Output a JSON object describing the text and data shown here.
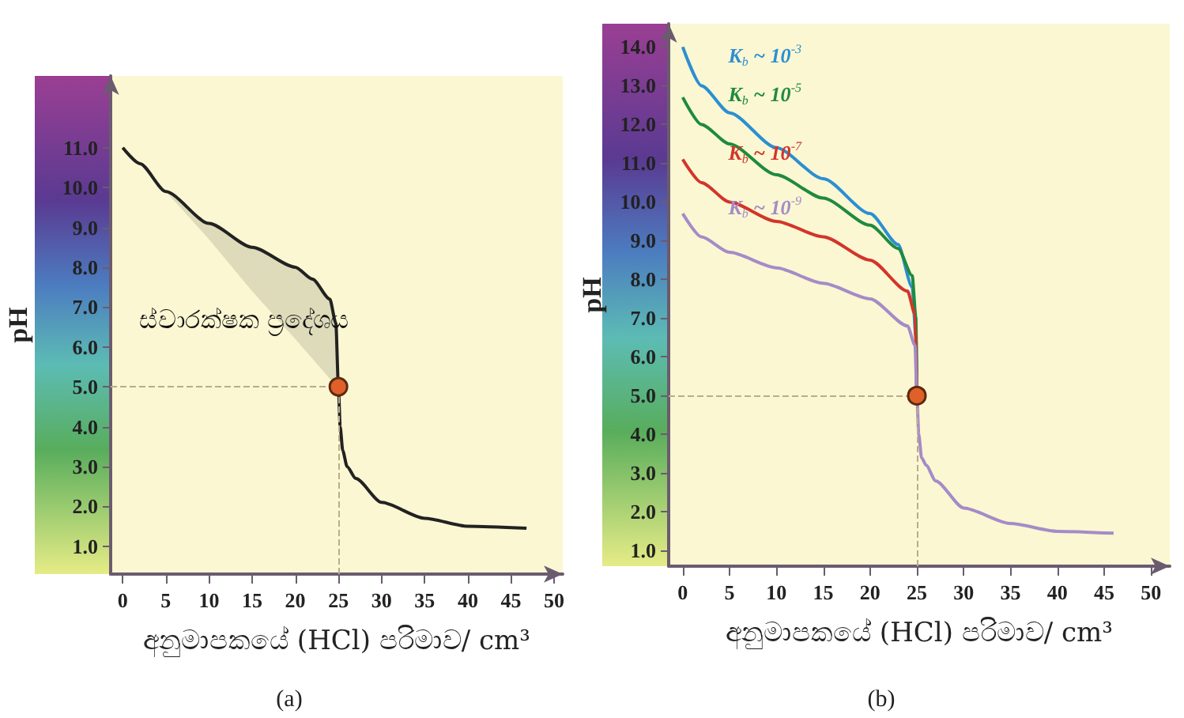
{
  "chart_data": [
    {
      "type": "line",
      "xlabel": "අනුමාපකයේ (HCl) පරිමාව/ cm³",
      "ylabel": "pH",
      "xlim": [
        -1.4,
        51
      ],
      "xticks": [
        0,
        5,
        10,
        15,
        20,
        25,
        30,
        35,
        40,
        45,
        50
      ],
      "ylim": [
        0.3,
        12.8
      ],
      "yticks": [
        {
          "value": 1,
          "label": "1.0"
        },
        {
          "value": 2,
          "label": "2.0"
        },
        {
          "value": 3,
          "label": "3.0"
        },
        {
          "value": 4,
          "label": "4.0"
        },
        {
          "value": 5,
          "label": "5.0"
        },
        {
          "value": 6,
          "label": "6.0"
        },
        {
          "value": 7,
          "label": "7.0"
        },
        {
          "value": 8,
          "label": "8.0"
        },
        {
          "value": 9,
          "label": "9.0"
        },
        {
          "value": 10,
          "label": "10.0"
        },
        {
          "value": 11,
          "label": "11.0"
        }
      ],
      "marker": "none",
      "series": [
        {
          "color": "#222222",
          "x": [
            0,
            2,
            5,
            10,
            15,
            20,
            22,
            24,
            24.7,
            25,
            25.2,
            25.5,
            26,
            27,
            30,
            35,
            40,
            46.8
          ],
          "values": [
            11.0,
            10.6,
            9.9,
            9.1,
            8.5,
            8.0,
            7.7,
            7.2,
            6.6,
            5.0,
            4.0,
            3.4,
            3.0,
            2.7,
            2.1,
            1.7,
            1.5,
            1.45
          ],
          "lower": [
            null,
            10.6,
            9.9,
            8.7,
            7.4,
            6.2,
            5.7,
            5.2,
            5.1,
            5.0,
            null,
            null,
            null,
            null,
            null,
            null,
            null,
            null
          ],
          "upper": [
            null,
            10.6,
            9.9,
            9.1,
            8.5,
            8.0,
            7.7,
            7.2,
            6.6,
            5.0,
            null,
            null,
            null,
            null,
            null,
            null,
            null,
            null
          ]
        },
        {
          "type": "scatter",
          "marker": "circle",
          "color": "#e0602a",
          "x": [
            25
          ],
          "values": [
            5.0
          ]
        }
      ],
      "ref_lines": [
        {
          "axis": "x",
          "value": 25,
          "color": "#b9ad8a",
          "line_style": "dashed"
        },
        {
          "axis": "y",
          "value": 5.0,
          "color": "#b9ad8a",
          "line_style": "dashed"
        }
      ],
      "annotations": [
        "ස්වාරක්ෂක ප්‍රදේශය",
        "(a)"
      ]
    },
    {
      "type": "line",
      "xlabel": "අනුමාපකයේ (HCl) පරිමාව/ cm³",
      "ylabel": "pH",
      "xlim": [
        -1.5,
        52
      ],
      "xticks": [
        0,
        5,
        10,
        15,
        20,
        25,
        30,
        35,
        40,
        45,
        50
      ],
      "ylim": [
        0.6,
        14.6
      ],
      "yticks": [
        {
          "value": 1,
          "label": "1.0"
        },
        {
          "value": 2,
          "label": "2.0"
        },
        {
          "value": 3,
          "label": "3.0"
        },
        {
          "value": 4,
          "label": "4.0"
        },
        {
          "value": 5,
          "label": "5.0"
        },
        {
          "value": 6,
          "label": "6.0"
        },
        {
          "value": 7,
          "label": "7.0"
        },
        {
          "value": 8,
          "label": "8.0"
        },
        {
          "value": 9,
          "label": "9.0"
        },
        {
          "value": 10,
          "label": "10.0"
        },
        {
          "value": 11,
          "label": "11.0"
        },
        {
          "value": 12,
          "label": "12.0"
        },
        {
          "value": 13,
          "label": "13.0"
        },
        {
          "value": 14,
          "label": "14.0"
        }
      ],
      "marker": "none",
      "series": [
        {
          "name": "K$_{b}$ ~ 10$^{-3}$",
          "color": "#2b8fd3",
          "x": [
            0,
            2,
            5,
            10,
            15,
            20,
            23,
            24.5,
            24.9,
            25
          ],
          "values": [
            14.0,
            13.0,
            12.3,
            11.4,
            10.6,
            9.7,
            8.9,
            7.8,
            6.5,
            5.0
          ]
        },
        {
          "name": "K$_{b}$ ~ 10$^{-5}$",
          "color": "#1f8a3e",
          "x": [
            0,
            2,
            5,
            10,
            15,
            20,
            23,
            24.5,
            24.9,
            25
          ],
          "values": [
            12.7,
            12.0,
            11.5,
            10.7,
            10.1,
            9.4,
            8.8,
            8.1,
            7.0,
            5.0
          ]
        },
        {
          "name": "K$_{b}$ ~ 10$^{-7}$",
          "color": "#d2352b",
          "x": [
            0,
            2,
            5,
            10,
            15,
            20,
            24,
            24.8,
            25
          ],
          "values": [
            11.1,
            10.5,
            10.0,
            9.5,
            9.1,
            8.5,
            7.7,
            7.1,
            5.0
          ]
        },
        {
          "name": "K$_{b}$ ~ 10$^{-9}$",
          "color": "#a58bc8",
          "x": [
            0,
            2,
            5,
            10,
            15,
            20,
            24,
            24.8,
            25,
            25.2,
            25.5,
            26,
            27,
            30,
            35,
            40,
            46
          ],
          "values": [
            9.7,
            9.1,
            8.7,
            8.3,
            7.9,
            7.5,
            6.8,
            6.3,
            5.0,
            4.0,
            3.4,
            3.2,
            2.8,
            2.1,
            1.7,
            1.5,
            1.45
          ]
        },
        {
          "type": "scatter",
          "marker": "circle",
          "color": "#e0602a",
          "x": [
            25
          ],
          "values": [
            5.0
          ]
        }
      ],
      "ref_lines": [
        {
          "axis": "x",
          "value": 25,
          "color": "#b9ad8a",
          "line_style": "dashed"
        },
        {
          "axis": "y",
          "value": 5.0,
          "color": "#b9ad8a",
          "line_style": "dashed"
        }
      ],
      "annotations": [
        "(b)"
      ]
    }
  ]
}
